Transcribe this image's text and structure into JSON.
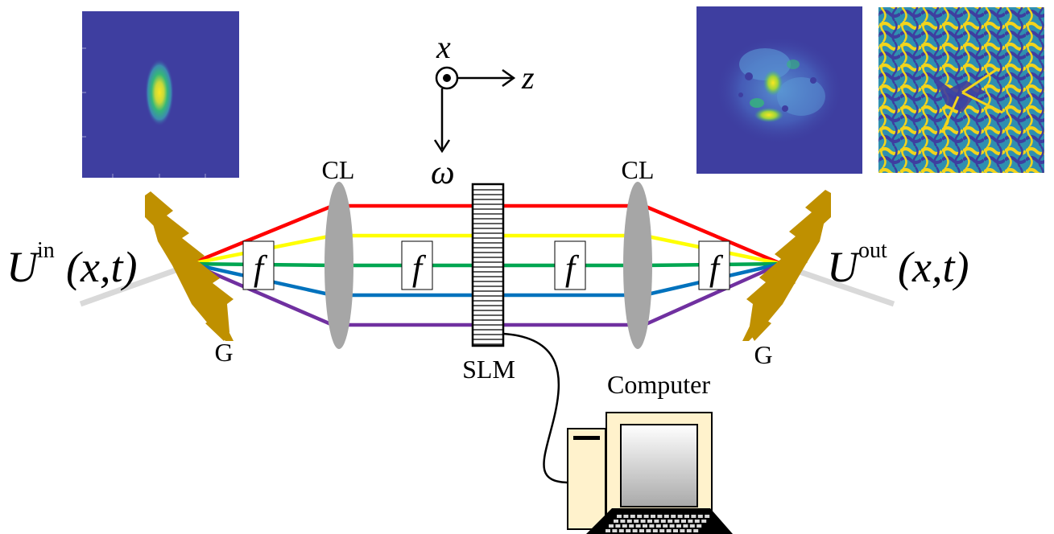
{
  "axes": {
    "x": "x",
    "z": "z",
    "omega": "ω"
  },
  "labels": {
    "cl_left": "CL",
    "cl_right": "CL",
    "g_left": "G",
    "g_right": "G",
    "slm": "SLM",
    "computer": "Computer",
    "f": "f"
  },
  "fields": {
    "in_symbol": "U",
    "in_sup": "in",
    "in_args": "(x,t)",
    "out_symbol": "U",
    "out_sup": "out",
    "out_args": "(x,t)"
  },
  "colors": {
    "beams": [
      "#ff0000",
      "#ffff00",
      "#00a651",
      "#0072bd",
      "#7030a0"
    ],
    "grating": "#bf9000",
    "lens": "#a6a6a6",
    "incident_beam": "#d9d9d9",
    "plot_background": "#3e3ea0",
    "computer_body": "#fff2cc"
  }
}
